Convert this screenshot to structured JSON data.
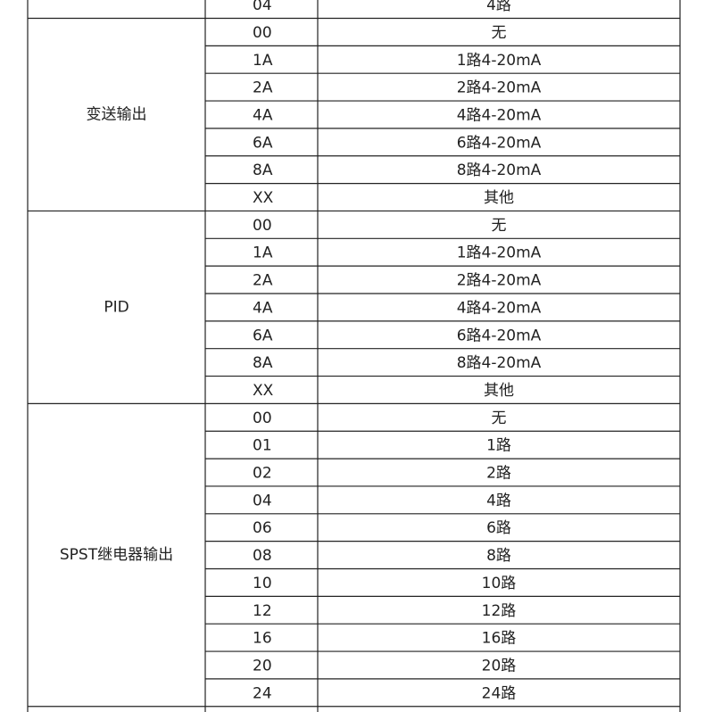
{
  "table": {
    "top_row": {
      "code": "04",
      "desc": "4路"
    },
    "groups": [
      {
        "label": "变送输出",
        "rows": [
          [
            "00",
            "无"
          ],
          [
            "1A",
            "1路4-20mA"
          ],
          [
            "2A",
            "2路4-20mA"
          ],
          [
            "4A",
            "4路4-20mA"
          ],
          [
            "6A",
            "6路4-20mA"
          ],
          [
            "8A",
            "8路4-20mA"
          ],
          [
            "XX",
            "其他"
          ]
        ]
      },
      {
        "label": "PID",
        "rows": [
          [
            "00",
            "无"
          ],
          [
            "1A",
            "1路4-20mA"
          ],
          [
            "2A",
            "2路4-20mA"
          ],
          [
            "4A",
            "4路4-20mA"
          ],
          [
            "6A",
            "6路4-20mA"
          ],
          [
            "8A",
            "8路4-20mA"
          ],
          [
            "XX",
            "其他"
          ]
        ]
      },
      {
        "label": "SPST继电器输出",
        "rows": [
          [
            "00",
            "无"
          ],
          [
            "01",
            "1路"
          ],
          [
            "02",
            "2路"
          ],
          [
            "04",
            "4路"
          ],
          [
            "06",
            "6路"
          ],
          [
            "08",
            "8路"
          ],
          [
            "10",
            "10路"
          ],
          [
            "12",
            "12路"
          ],
          [
            "16",
            "16路"
          ],
          [
            "20",
            "20路"
          ],
          [
            "24",
            "24路"
          ]
        ]
      }
    ]
  }
}
